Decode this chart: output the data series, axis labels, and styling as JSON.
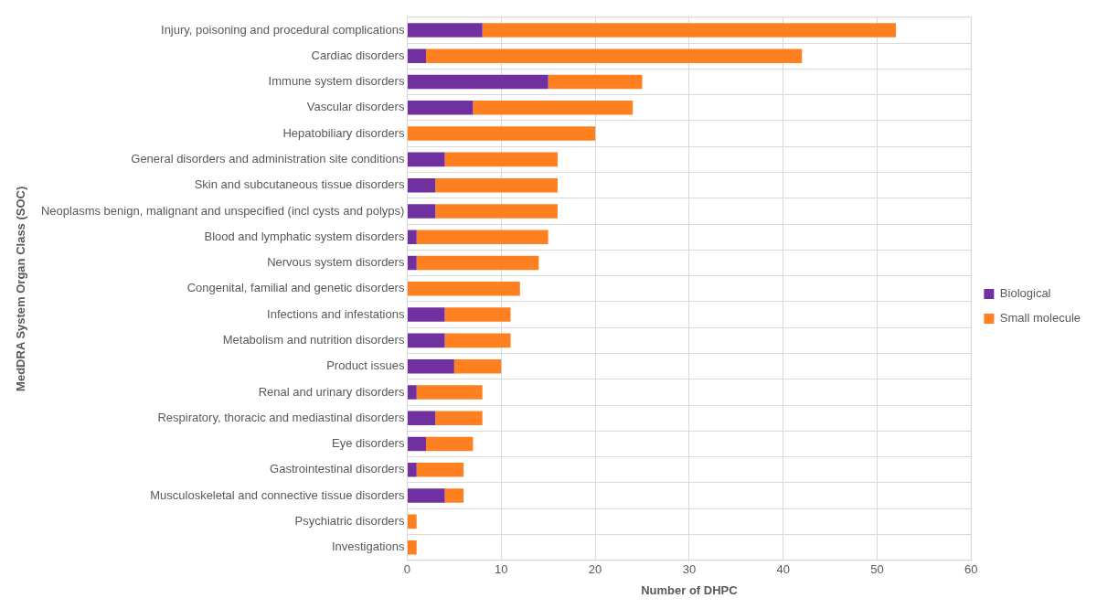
{
  "chart_data": {
    "type": "bar",
    "orientation": "horizontal",
    "stacked": true,
    "xlabel": "Number of DHPC",
    "ylabel": "MedDRA System Organ Class (SOC)",
    "categories": [
      "Injury, poisoning and procedural complications",
      "Cardiac disorders",
      "Immune system disorders",
      "Vascular disorders",
      "Hepatobiliary disorders",
      "General disorders and administration site conditions",
      "Skin and subcutaneous tissue disorders",
      "Neoplasms benign, malignant and unspecified (incl cysts and polyps)",
      "Blood and lymphatic system disorders",
      "Nervous system disorders",
      "Congenital, familial and genetic disorders",
      "Infections and infestations",
      "Metabolism and nutrition disorders",
      "Product issues",
      "Renal and urinary disorders",
      "Respiratory, thoracic and mediastinal disorders",
      "Eye disorders",
      "Gastrointestinal disorders",
      "Musculoskeletal and connective tissue disorders",
      "Psychiatric disorders",
      "Investigations"
    ],
    "series": [
      {
        "name": "Biological",
        "color": "#7030a0",
        "values": [
          8,
          2,
          15,
          7,
          0,
          4,
          3,
          3,
          1,
          1,
          0,
          4,
          4,
          5,
          1,
          3,
          2,
          1,
          4,
          0,
          0
        ]
      },
      {
        "name": "Small molecule",
        "color": "#ff8021",
        "values": [
          44,
          40,
          10,
          17,
          20,
          12,
          13,
          13,
          14,
          13,
          12,
          7,
          7,
          5,
          7,
          5,
          5,
          5,
          2,
          1,
          1
        ]
      }
    ],
    "xlim": [
      0,
      60
    ],
    "xticks": [
      0,
      10,
      20,
      30,
      40,
      50,
      60
    ],
    "grid": true,
    "legend": "right"
  }
}
